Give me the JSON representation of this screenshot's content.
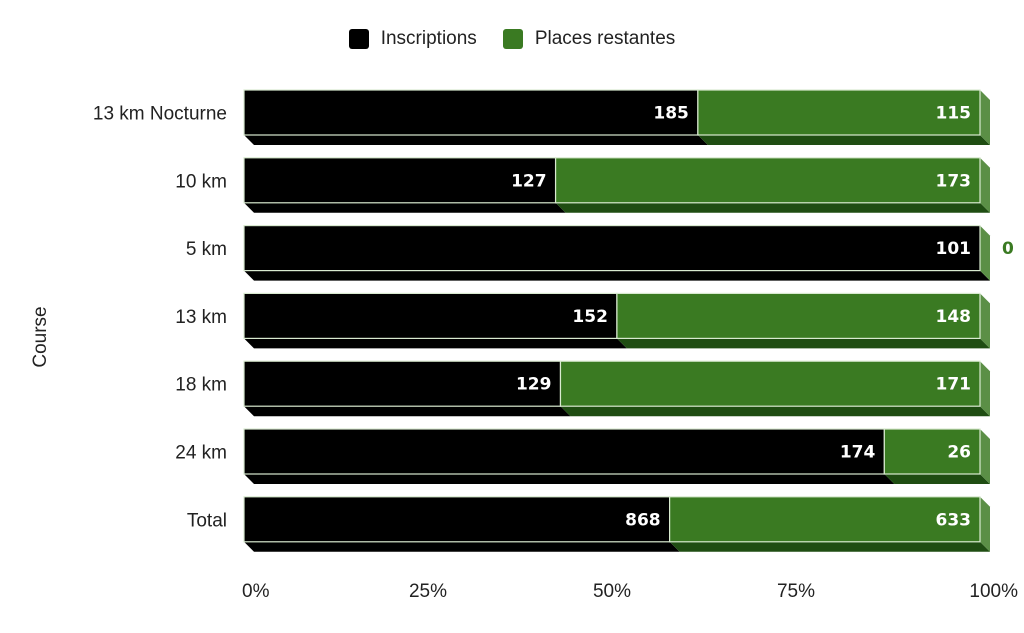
{
  "chart_data": {
    "type": "bar",
    "orientation": "horizontal",
    "stacked": "percent",
    "categories": [
      "13 km Nocturne",
      "10 km",
      "5 km",
      "13 km",
      "18 km",
      "24 km",
      "Total"
    ],
    "series": [
      {
        "name": "Inscriptions",
        "values": [
          185,
          127,
          101,
          152,
          129,
          174,
          868
        ],
        "color": "#000000"
      },
      {
        "name": "Places restantes",
        "values": [
          115,
          173,
          0,
          148,
          171,
          26,
          633
        ],
        "color": "#3a7a22"
      }
    ],
    "ylabel": "Course",
    "xticks": [
      "0%",
      "25%",
      "50%",
      "75%",
      "100%"
    ],
    "xlim": [
      0,
      100
    ],
    "legend_position": "top-center",
    "grid": false,
    "style": "3d"
  }
}
